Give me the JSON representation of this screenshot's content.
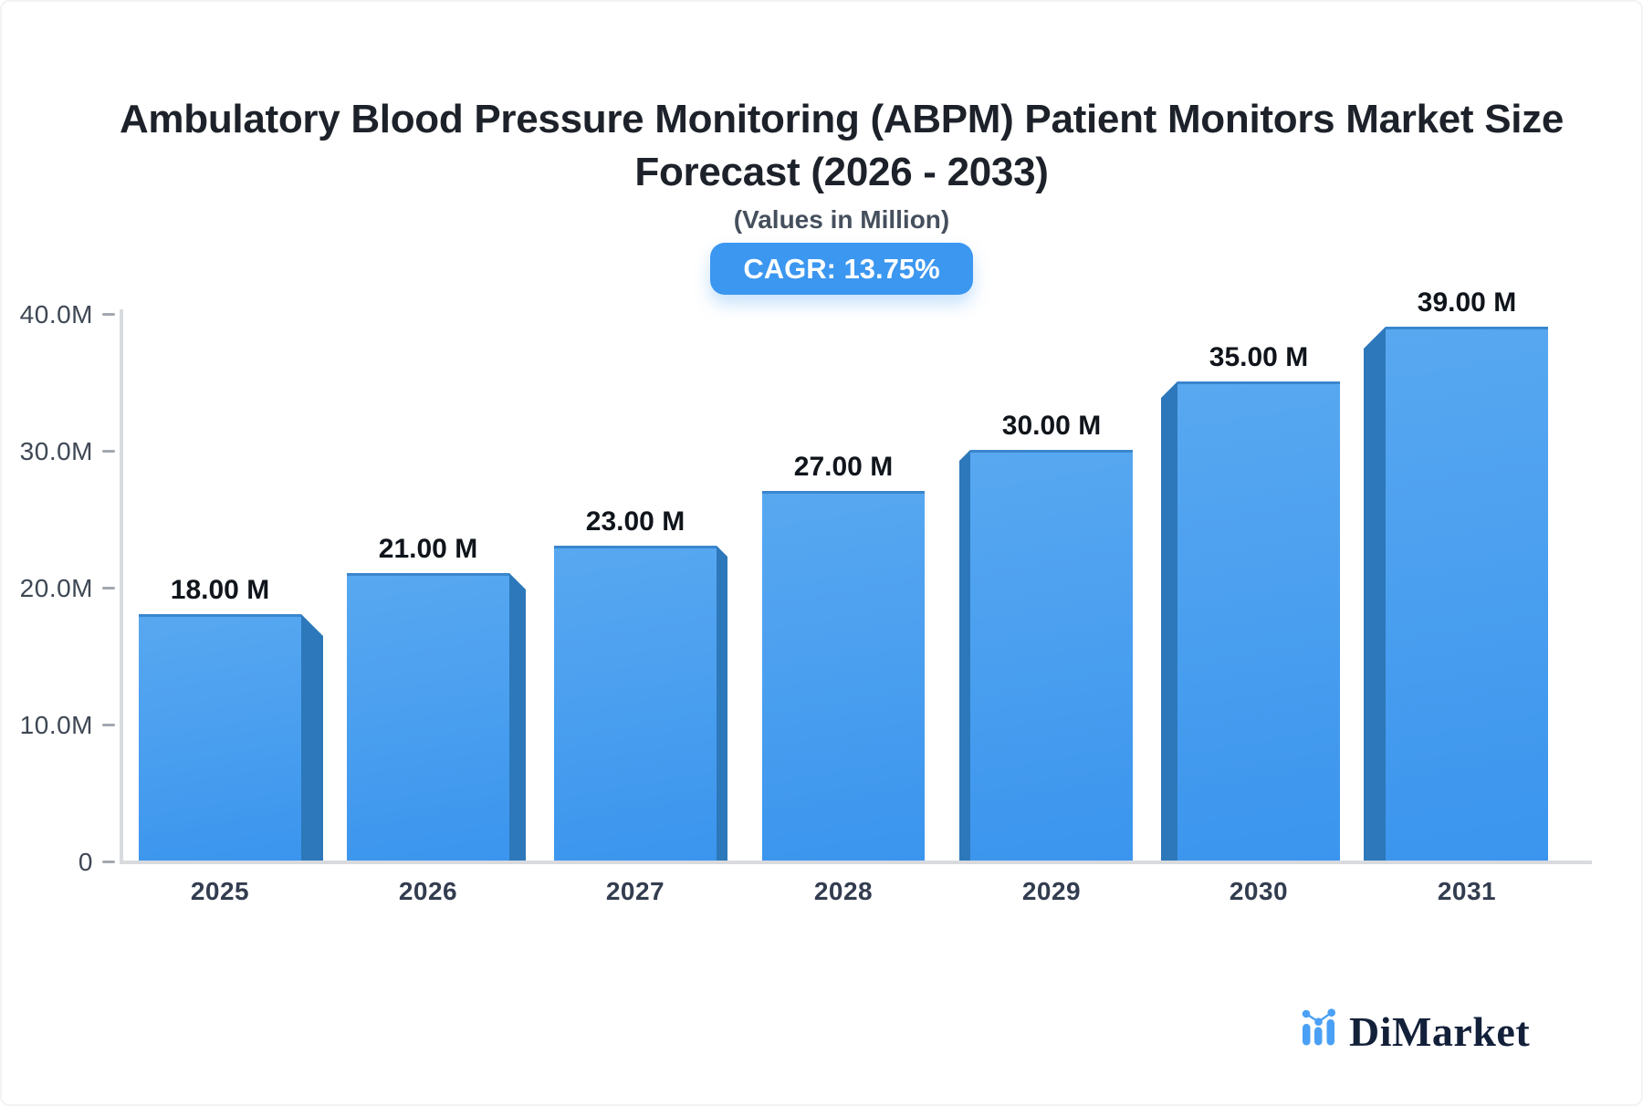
{
  "header": {
    "title_line1": "Ambulatory Blood Pressure Monitoring (ABPM) Patient Monitors Market Size",
    "title_line2": "Forecast (2026 - 2033)",
    "subtitle": "(Values in Million)",
    "cagr_label": "CAGR: 13.75%"
  },
  "chart_data": {
    "type": "bar",
    "title": "Ambulatory Blood Pressure Monitoring (ABPM) Patient Monitors Market Size Forecast (2026 - 2033)",
    "subtitle": "(Values in Million)",
    "unit": "Million",
    "cagr": "13.75%",
    "categories": [
      "2025",
      "2026",
      "2027",
      "2028",
      "2029",
      "2030",
      "2031"
    ],
    "values": [
      18,
      21,
      23,
      27,
      30,
      35,
      39
    ],
    "value_labels": [
      "18.00 M",
      "21.00 M",
      "23.00 M",
      "27.00 M",
      "30.00 M",
      "35.00 M",
      "39.00 M"
    ],
    "y_ticks": [
      {
        "label": "40.0M",
        "value": 40
      },
      {
        "label": "30.0M",
        "value": 30
      },
      {
        "label": "20.0M",
        "value": 20
      },
      {
        "label": "10.0M",
        "value": 10
      },
      {
        "label": "0",
        "value": 0
      }
    ],
    "ylim": [
      0,
      40
    ],
    "xlabel": "",
    "ylabel": "",
    "grid": false,
    "legend": null,
    "style": "3d-perspective-bars"
  },
  "footer": {
    "logo_text": "DiMarket",
    "logo_icon": "bar-chart-with-trendline-icon"
  },
  "colors": {
    "accent": "#3b97f0",
    "bar-face-top": "#58a8f0",
    "bar-face-bottom": "#3b95ee",
    "bar-side": "#2d78ba",
    "bar-top-edge": "#3a86cf",
    "axis-line": "#d8dade",
    "tick": "#a2a8b0",
    "y-label": "#3e4754",
    "x-label": "#333d50",
    "value-label": "#10151b",
    "title": "#1d222a",
    "subtitle": "#454f5d",
    "logo-navy": "#13203a",
    "logo-blue": "#4aa0f5"
  }
}
